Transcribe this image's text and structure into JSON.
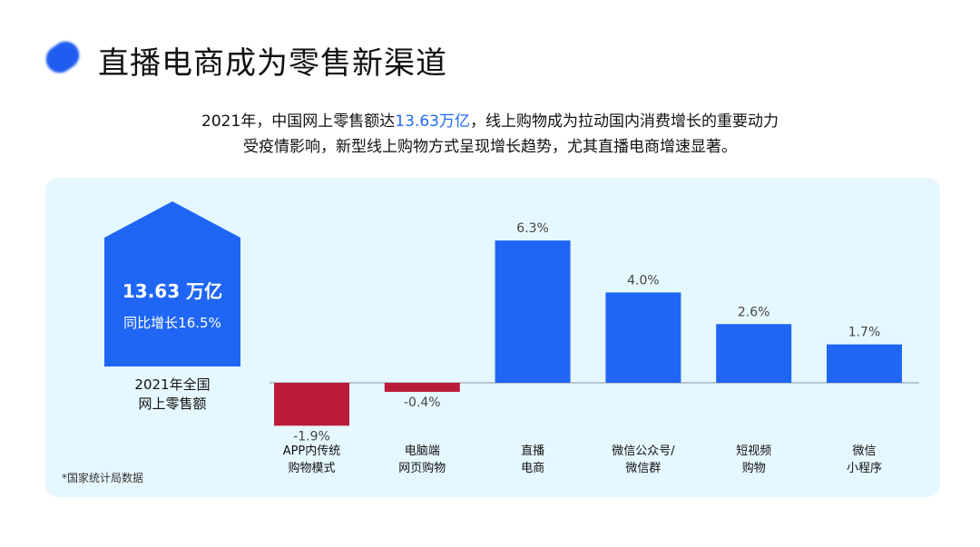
{
  "header": {
    "title": "直播电商成为零售新渠道"
  },
  "intro": {
    "line1_pre": "2021年，中国网上零售额达",
    "line1_highlight": "13.63万亿",
    "line1_post": "，线上购物成为拉动国内消费增长的重要动力",
    "line2": "受疫情影响，新型线上购物方式呈现增长趋势，尤其直播电商增速显著。"
  },
  "highlight_card": {
    "value": "13.63 万亿",
    "growth": "同比增长16.5%",
    "caption_line1": "2021年全国",
    "caption_line2": "网上零售额"
  },
  "source": "*国家统计局数据",
  "colors": {
    "positive": "#1f66f5",
    "negative": "#bb1c3a",
    "accent": "#1f6af5"
  },
  "chart_data": {
    "type": "bar",
    "categories": [
      [
        "APP内传统",
        "购物模式"
      ],
      [
        "电脑端",
        "网页购物"
      ],
      [
        "直播",
        "电商"
      ],
      [
        "微信公众号/",
        "微信群"
      ],
      [
        "短视频",
        "购物"
      ],
      [
        "微信",
        "小程序"
      ]
    ],
    "values": [
      -1.9,
      -0.4,
      6.3,
      4.0,
      2.6,
      1.7
    ],
    "data_labels": [
      "-1.9%",
      "-0.4%",
      "6.3%",
      "4.0%",
      "2.6%",
      "1.7%"
    ],
    "ylim": [
      -1.9,
      6.3
    ],
    "grid": false
  }
}
